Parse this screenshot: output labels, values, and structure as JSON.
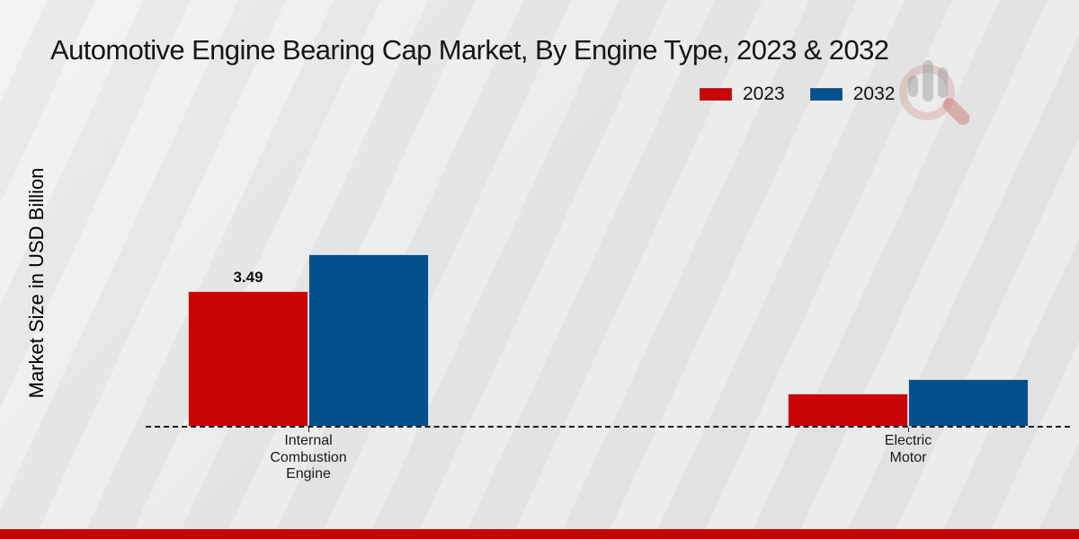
{
  "title": "Automotive Engine Bearing Cap Market, By Engine Type, 2023 & 2032",
  "y_axis_label": "Market Size in USD Billion",
  "legend": {
    "items": [
      {
        "label": "2023",
        "color": "#c90605"
      },
      {
        "label": "2032",
        "color": "#04508c"
      }
    ]
  },
  "watermark_icon": "magnifier-bar-chart-logo",
  "colors": {
    "series_2023": "#c90605",
    "series_2032": "#04508c",
    "footer_strip": "#c00505",
    "background": "#e8e8e8",
    "baseline": "#1c1c1c"
  },
  "chart_data": {
    "type": "bar",
    "title": "Automotive Engine Bearing Cap Market, By Engine Type, 2023 & 2032",
    "xlabel": "",
    "ylabel": "Market Size in USD Billion",
    "categories": [
      "Internal Combustion Engine",
      "Electric Motor"
    ],
    "category_lines": [
      [
        "Internal",
        "Combustion",
        "Engine"
      ],
      [
        "Electric",
        "Motor"
      ]
    ],
    "series": [
      {
        "name": "2023",
        "color": "#c90605",
        "values": [
          3.49,
          0.85
        ],
        "labels": [
          "3.49",
          null
        ]
      },
      {
        "name": "2032",
        "color": "#04508c",
        "values": [
          4.44,
          1.22
        ],
        "labels": [
          null,
          null
        ]
      }
    ],
    "ylim": [
      0,
      5
    ],
    "grid": false,
    "legend_position": "top-right",
    "x_axis_style": "dashed-baseline",
    "visible_value_labels": [
      "3.49"
    ]
  }
}
